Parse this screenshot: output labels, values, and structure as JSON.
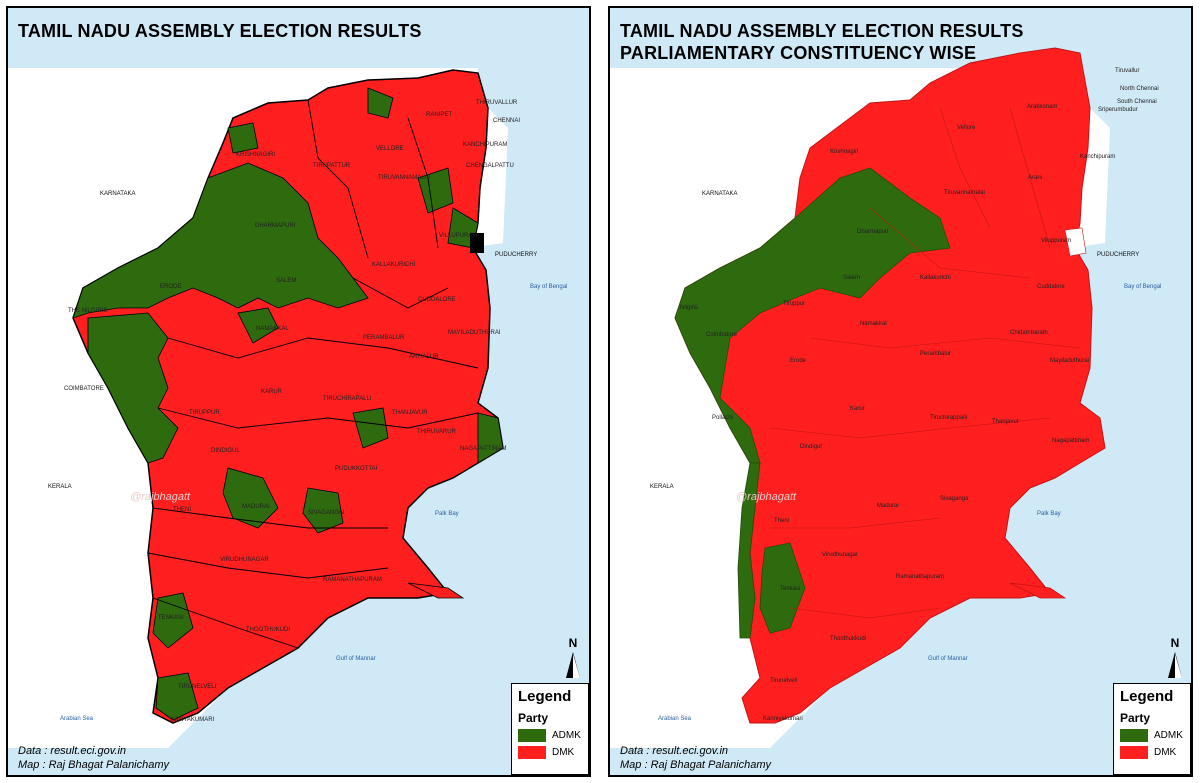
{
  "colors": {
    "admk": "#2e6b0f",
    "dmk": "#ff1f1f",
    "sea": "#cfe9f7",
    "land": "#ffffff"
  },
  "left": {
    "title": "TAMIL NADU ASSEMBLY ELECTION RESULTS",
    "credits": {
      "line1": "Data : result.eci.gov.in",
      "line2": "Map : Raj Bhagat Palanichamy"
    },
    "watermark": "@rajbhagatt",
    "neighbors": {
      "karnataka": "KARNATAKA",
      "kerala": "KERALA",
      "puducherry": "PUDUCHERRY"
    },
    "seas": {
      "bay": "Bay of Bengal",
      "palk": "Palk Bay",
      "mannar": "Gulf of Mannar",
      "arabian": "Arabian Sea"
    },
    "districts": [
      "THIRUVALLUR",
      "CHENNAI",
      "VELLORE",
      "RANIPET",
      "KANCHIPURAM",
      "CHENGALPATTU",
      "KRISHNAGIRI",
      "TIRUPATTUR",
      "TIRUVANNAMALAI",
      "DHARMAPURI",
      "VILLUPURAM",
      "SALEM",
      "KALLAKURICHI",
      "THE NILGIRIS",
      "ERODE",
      "CUDDALORE",
      "NAMAKKAL",
      "PERAMBALUR",
      "MAYILADUTHURAI",
      "ARIYALUR",
      "COIMBATORE",
      "KARUR",
      "TIRUCHIRAPALLI",
      "TIRUPPUR",
      "THANJAVUR",
      "THIRUVARUR",
      "NAGAPATTINAM",
      "DINDIGUL",
      "PUDUKKOTTAI",
      "THENI",
      "MADURAI",
      "SIVAGANGAI",
      "VIRUDHUNAGAR",
      "RAMANATHAPURAM",
      "TENKASI",
      "THOOTHUKUDI",
      "TIRUNELVELI",
      "KANYAKUMARI"
    ]
  },
  "right": {
    "title_line1": "TAMIL NADU ASSEMBLY ELECTION RESULTS",
    "title_line2": "PARLIAMENTARY CONSTITUENCY WISE",
    "credits": {
      "line1": "Data : result.eci.gov.in",
      "line2": "Map : Raj Bhagat Palanichamy"
    },
    "watermark": "@rajbhagatt",
    "neighbors": {
      "karnataka": "KARNATAKA",
      "kerala": "KERALA",
      "puducherry": "PUDUCHERRY"
    },
    "seas": {
      "bay": "Bay of Bengal",
      "palk": "Palk Bay",
      "mannar": "Gulf of Mannar",
      "arabian": "Arabian Sea"
    },
    "constituencies": [
      "Tiruvallur",
      "North Chennai",
      "South Chennai",
      "Sriperumbudur",
      "Arakkonam",
      "Vellore",
      "Krishnagiri",
      "Kanchipuram",
      "Arani",
      "Tiruvannamalai",
      "Dharmapuri",
      "Viluppuram",
      "Salem",
      "Kallakurichi",
      "Cuddalore",
      "Nilgiris",
      "Tiruppur",
      "Namakkal",
      "Chidambaram",
      "Coimbatore",
      "Erode",
      "Perambalur",
      "Mayiladuthurai",
      "Pollachi",
      "Karur",
      "Tiruchirappalli",
      "Thanjavur",
      "Nagapattinam",
      "Dindigul",
      "Theni",
      "Madurai",
      "Sivaganga",
      "Virudhunagar",
      "Ramanathapuram",
      "Tenkasi",
      "Thoothukkudi",
      "Tirunelveli",
      "Kanniyakumari"
    ]
  },
  "legend": {
    "title": "Legend",
    "subtitle": "Party",
    "items": [
      {
        "label": "ADMK",
        "color": "#2e6b0f"
      },
      {
        "label": "DMK",
        "color": "#ff1f1f"
      }
    ]
  },
  "north_label": "N"
}
